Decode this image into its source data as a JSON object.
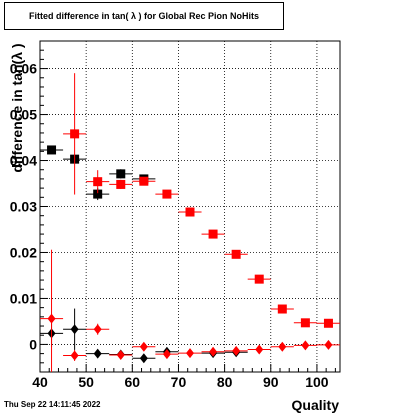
{
  "chart_data": {
    "type": "scatter",
    "title": "Fitted difference in tan( λ ) for Global Rec Pion NoHits",
    "xlabel": "Quality",
    "ylabel": "difference in tan(λ )",
    "timestamp": "Thu Sep 22 14:11:45 2022",
    "xlim": [
      40,
      105
    ],
    "ylim": [
      -0.006,
      0.066
    ],
    "grid": true,
    "x_ticks": [
      40,
      50,
      60,
      70,
      80,
      90,
      100
    ],
    "y_ticks": [
      0,
      0.01,
      0.02,
      0.03,
      0.04,
      0.05,
      0.06
    ],
    "y_tick_labels": [
      "0",
      "0.01",
      "0.02",
      "0.03",
      "0.04",
      "0.05",
      "0.06"
    ],
    "series": [
      {
        "marker": "square",
        "color": "#000000",
        "x": [
          42.5,
          47.5,
          52.5,
          57.5,
          62.5
        ],
        "y": [
          0.0423,
          0.0403,
          0.0327,
          0.0371,
          0.036
        ],
        "xerr": 2.5,
        "yerr": [
          0.0002,
          0.0002,
          0.0013,
          0.001,
          0.0005
        ]
      },
      {
        "marker": "square",
        "color": "#ff0000",
        "x": [
          47.5,
          52.5,
          57.5,
          62.5,
          67.5,
          72.5,
          77.5,
          82.5,
          87.5,
          92.5,
          97.5,
          102.5
        ],
        "y": [
          0.0458,
          0.0354,
          0.0348,
          0.0355,
          0.0327,
          0.0288,
          0.024,
          0.0196,
          0.0142,
          0.0077,
          0.0047,
          0.0046
        ],
        "xerr": 2.5,
        "yerr": [
          0.0132,
          0.0025,
          0.001,
          0.0005,
          0.0005,
          0.0005,
          0.0004,
          0.0004,
          0.0004,
          0.0003,
          0.0003,
          0.0003
        ]
      },
      {
        "marker": "diamond",
        "color": "#000000",
        "x": [
          42.5,
          47.5,
          52.5,
          57.5,
          62.5,
          67.5,
          77.5,
          82.5
        ],
        "y": [
          0.0024,
          0.0033,
          -0.002,
          -0.0022,
          -0.003,
          -0.0016,
          -0.0019,
          -0.0017
        ],
        "xerr": 2.5,
        "yerr": [
          0.003,
          0.0045,
          0.0007,
          0.0004,
          0.0002,
          0.0002,
          0.0002,
          0.0002
        ]
      },
      {
        "marker": "diamond",
        "color": "#ff0000",
        "x": [
          42.5,
          47.5,
          52.5,
          57.5,
          62.5,
          67.5,
          72.5,
          77.5,
          82.5,
          87.5,
          92.5,
          97.5,
          102.5
        ],
        "y": [
          0.0056,
          -0.0024,
          0.0033,
          -0.0023,
          -0.0005,
          -0.0021,
          -0.0019,
          -0.0016,
          -0.0014,
          -0.0011,
          -0.0005,
          -0.0002,
          -0.0001
        ],
        "xerr": 2.5,
        "yerr": [
          0.015,
          0.0012,
          0.0012,
          0.0004,
          0.0003,
          0.0002,
          0.0002,
          0.0002,
          0.0002,
          0.0002,
          0.0002,
          0.0002,
          0.0002
        ]
      }
    ]
  }
}
